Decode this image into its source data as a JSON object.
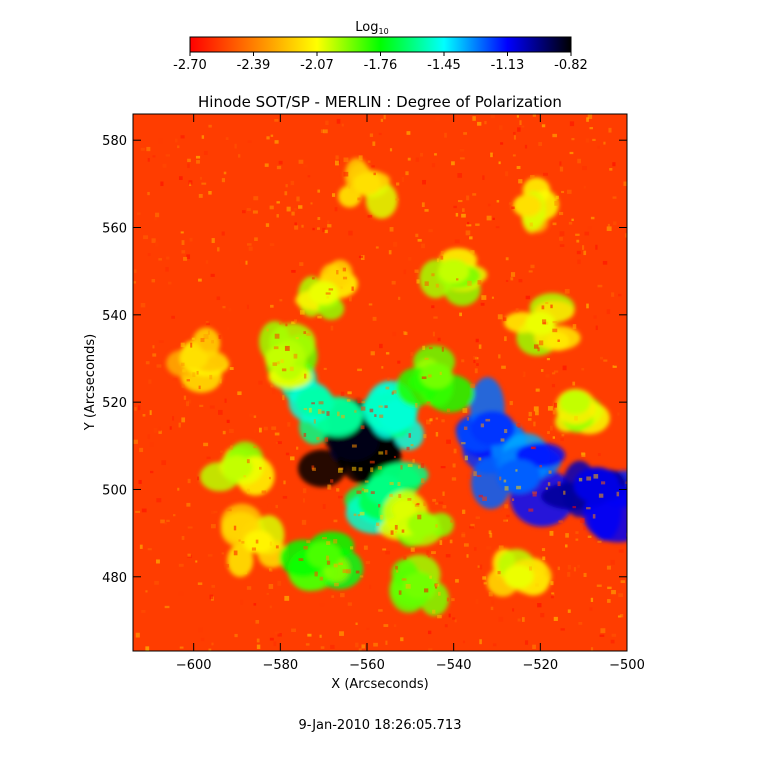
{
  "chart_data": {
    "type": "heatmap",
    "title": "Hinode SOT/SP - MERLIN : Degree of Polarization",
    "xlabel": "X (Arcseconds)",
    "ylabel": "Y (Arcseconds)",
    "xlim": [
      -614,
      -500
    ],
    "ylim": [
      463,
      586
    ],
    "x_ticks": [
      -600,
      -580,
      -560,
      -540,
      -520,
      -500
    ],
    "y_ticks": [
      480,
      500,
      520,
      540,
      560,
      580
    ],
    "colorbar": {
      "title_base": "Log",
      "title_sub": "10",
      "range": [
        -2.7,
        -0.82
      ],
      "ticks": [
        "-2.70",
        "-2.39",
        "-2.07",
        "-1.76",
        "-1.45",
        "-1.13",
        "-0.82"
      ],
      "colors": [
        "#ff0000",
        "#ff7f00",
        "#ffff00",
        "#00ff00",
        "#00ffff",
        "#0000ff",
        "#000000"
      ]
    },
    "features": [
      {
        "x": -563,
        "y": 511,
        "value": -0.85
      },
      {
        "x": -553,
        "y": 517,
        "value": -1.5
      },
      {
        "x": -531,
        "y": 514,
        "value": -1.2
      },
      {
        "x": -525,
        "y": 503,
        "value": -1.25
      },
      {
        "x": -507,
        "y": 501,
        "value": -1.1
      },
      {
        "x": -556,
        "y": 500,
        "value": -1.6
      },
      {
        "x": -544,
        "y": 526,
        "value": -1.9
      },
      {
        "x": -547,
        "y": 492,
        "value": -1.95
      },
      {
        "x": -572,
        "y": 520,
        "value": -1.55
      },
      {
        "x": -580,
        "y": 530,
        "value": -2.0
      },
      {
        "x": -570,
        "y": 545,
        "value": -2.05
      },
      {
        "x": -540,
        "y": 550,
        "value": -2.0
      },
      {
        "x": -520,
        "y": 538,
        "value": -2.05
      },
      {
        "x": -590,
        "y": 505,
        "value": -2.0
      },
      {
        "x": -585,
        "y": 488,
        "value": -2.1
      },
      {
        "x": -570,
        "y": 485,
        "value": -1.85
      },
      {
        "x": -548,
        "y": 478,
        "value": -1.9
      },
      {
        "x": -525,
        "y": 480,
        "value": -2.05
      },
      {
        "x": -512,
        "y": 520,
        "value": -2.0
      },
      {
        "x": -600,
        "y": 530,
        "value": -2.15
      },
      {
        "x": -560,
        "y": 570,
        "value": -2.15
      },
      {
        "x": -523,
        "y": 565,
        "value": -2.15
      }
    ],
    "grid": false,
    "legend": "colorbar-top"
  },
  "footer": {
    "timestamp": "9-Jan-2010 18:26:05.713"
  }
}
